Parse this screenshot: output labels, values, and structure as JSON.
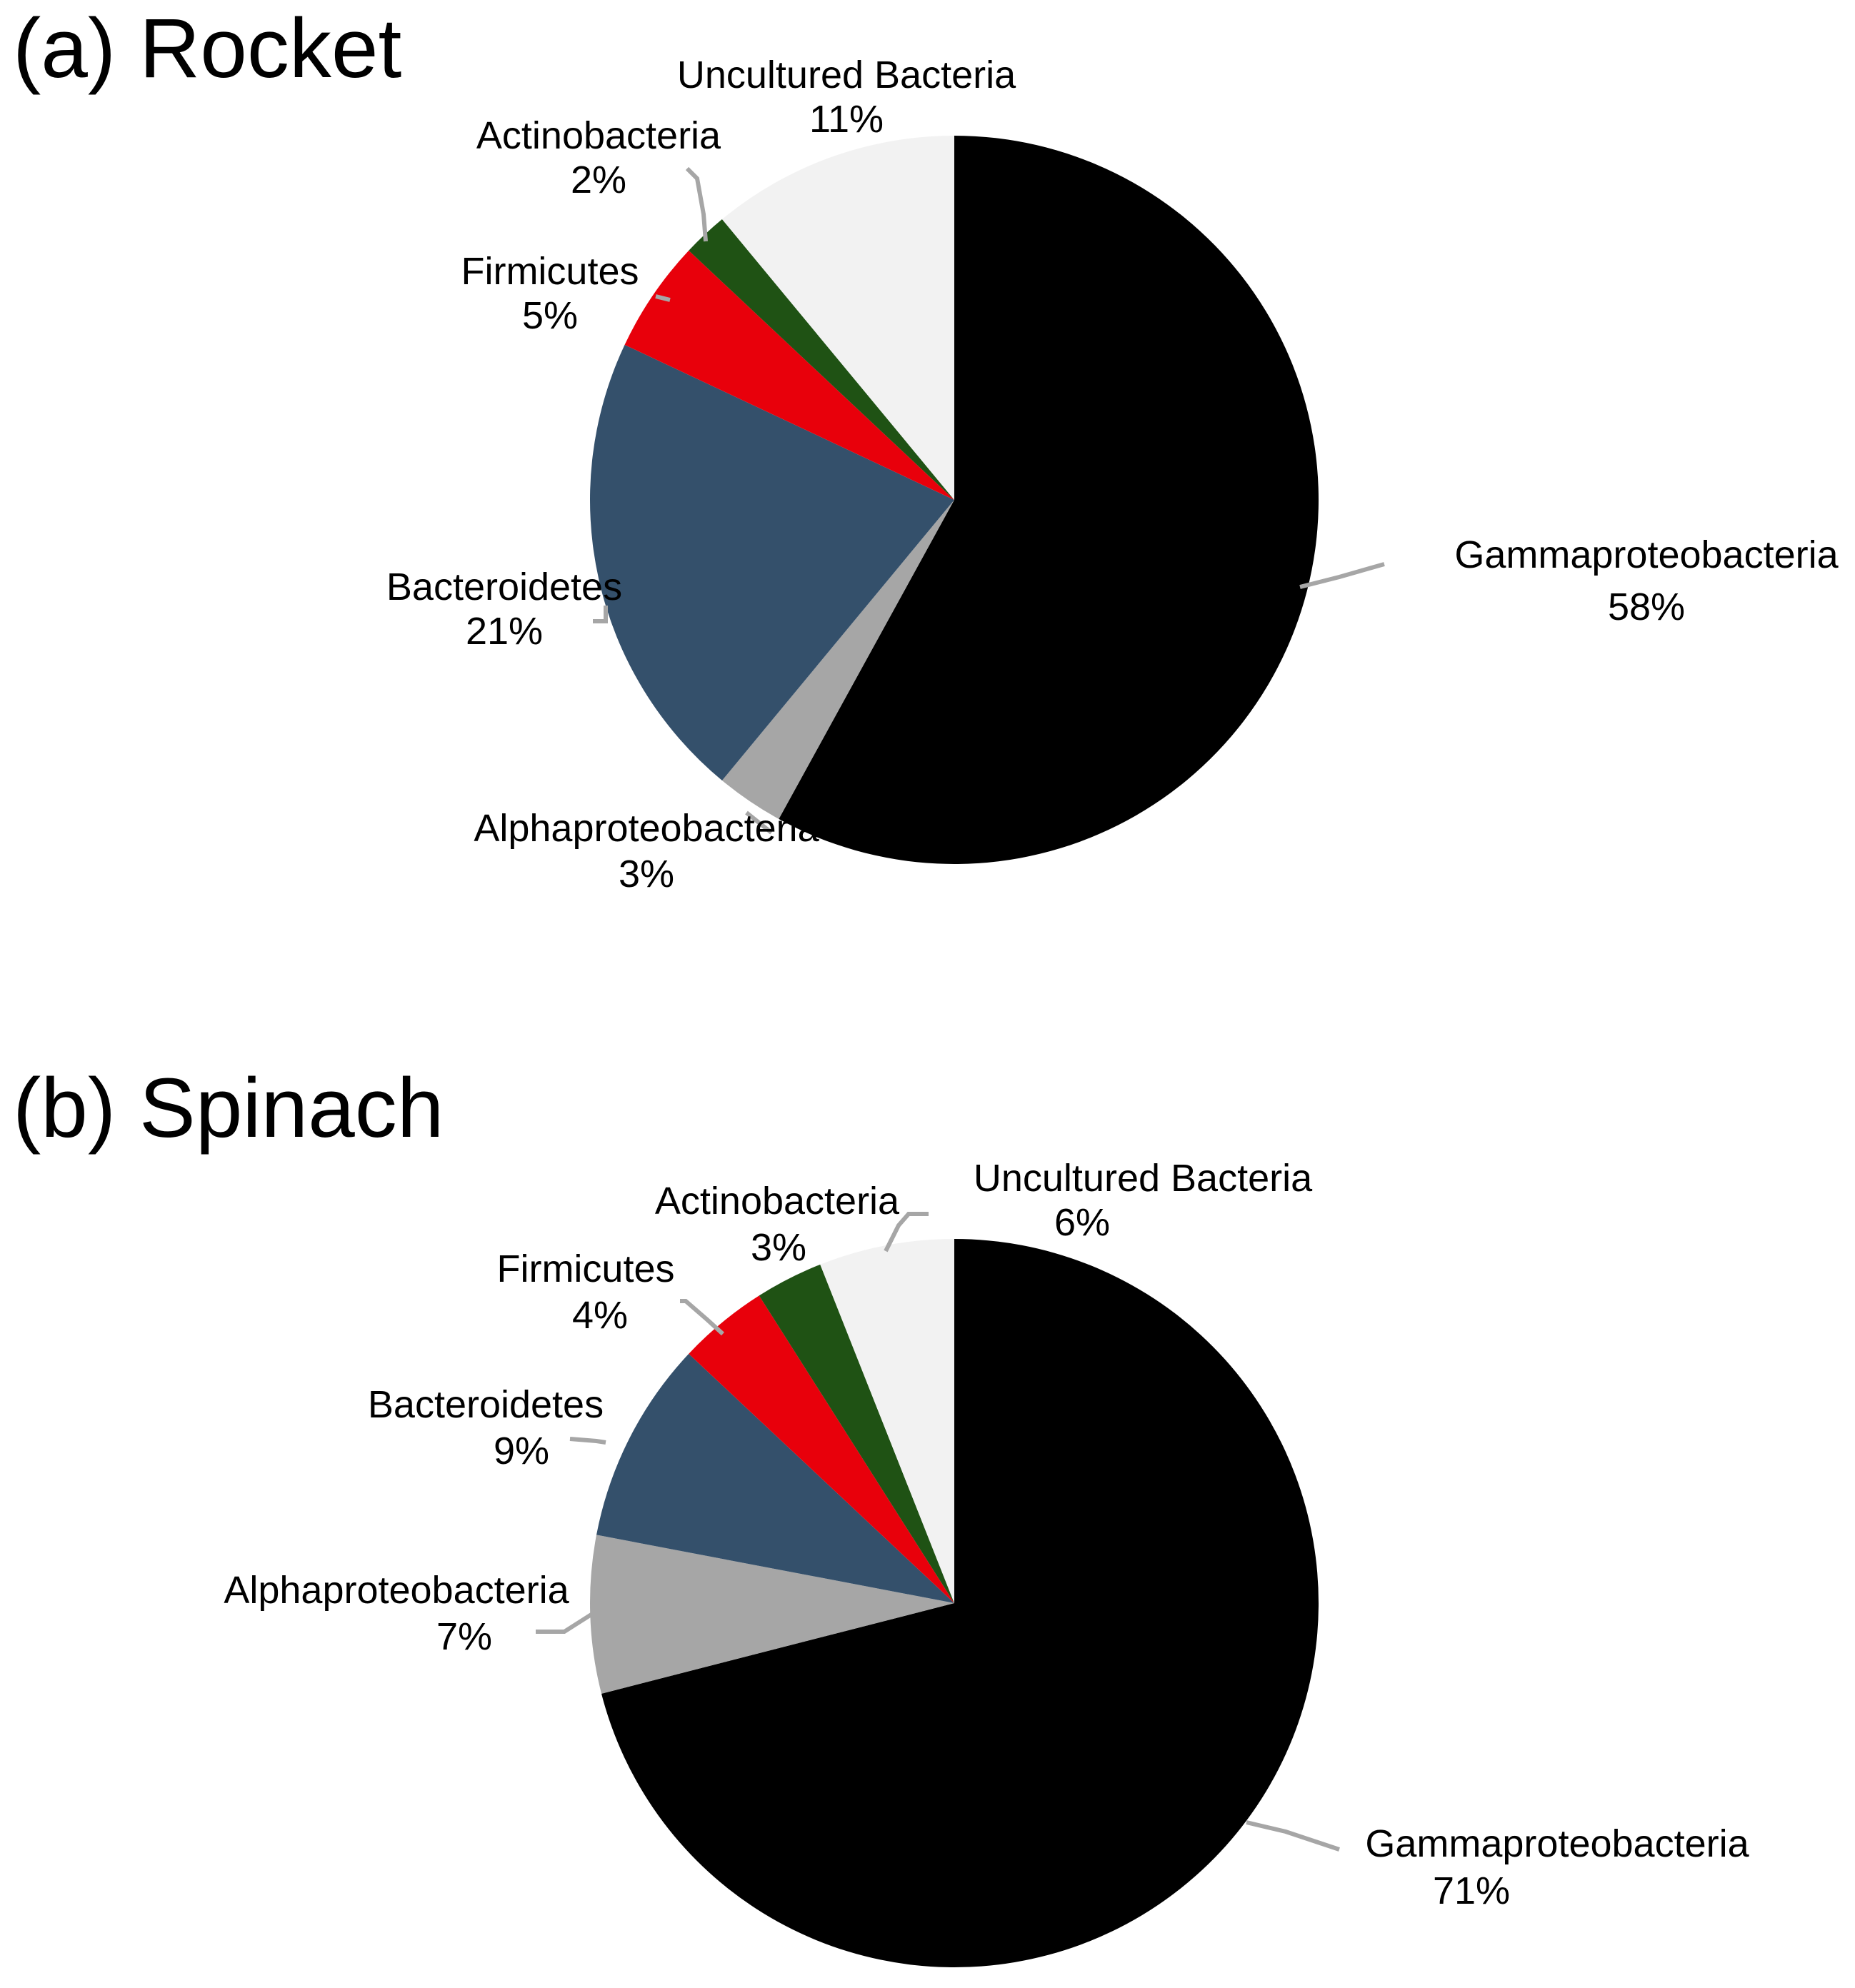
{
  "chart_data": [
    {
      "type": "pie",
      "title": "(a) Rocket",
      "slices": [
        {
          "name": "Gammaproteobacteria",
          "value": 58,
          "label": "58%",
          "color": "#000000"
        },
        {
          "name": "Alphaproteobacteria",
          "value": 3,
          "label": "3%",
          "color": "#a6a6a6"
        },
        {
          "name": "Bacteroidetes",
          "value": 21,
          "label": "21%",
          "color": "#34506b"
        },
        {
          "name": "Firmicutes",
          "value": 5,
          "label": "5%",
          "color": "#e8000b"
        },
        {
          "name": "Actinobacteria",
          "value": 2,
          "label": "2%",
          "color": "#1f5214"
        },
        {
          "name": "Uncultured Bacteria",
          "value": 11,
          "label": "11%",
          "color": "#f2f2f2"
        }
      ]
    },
    {
      "type": "pie",
      "title": "(b) Spinach",
      "slices": [
        {
          "name": "Gammaproteobacteria",
          "value": 71,
          "label": "71%",
          "color": "#000000"
        },
        {
          "name": "Alphaproteobacteria",
          "value": 7,
          "label": "7%",
          "color": "#a6a6a6"
        },
        {
          "name": "Bacteroidetes",
          "value": 9,
          "label": "9%",
          "color": "#34506b"
        },
        {
          "name": "Firmicutes",
          "value": 4,
          "label": "4%",
          "color": "#e8000b"
        },
        {
          "name": "Actinobacteria",
          "value": 3,
          "label": "3%",
          "color": "#1f5214"
        },
        {
          "name": "Uncultured Bacteria",
          "value": 6,
          "label": "6%",
          "color": "#f2f2f2"
        }
      ]
    }
  ]
}
